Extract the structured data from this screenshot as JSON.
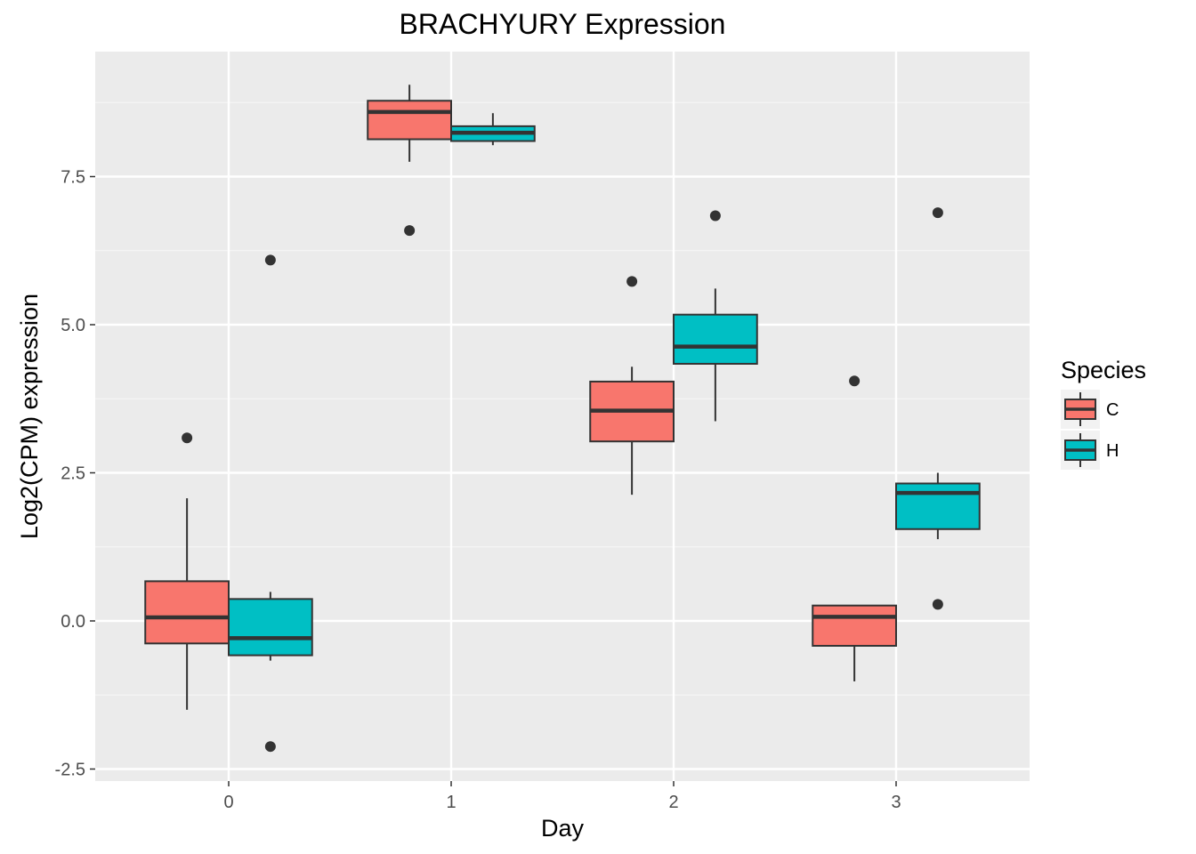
{
  "chart_data": {
    "type": "boxplot",
    "title": "BRACHYURY Expression",
    "xlabel": "Day",
    "ylabel": "Log2(CPM) expression",
    "categories": [
      "0",
      "1",
      "2",
      "3"
    ],
    "ylim": [
      -2.5,
      9.0
    ],
    "xlim": [
      -0.6,
      3.6
    ],
    "yticks": [
      -2.5,
      0.0,
      2.5,
      5.0,
      7.5
    ],
    "ytick_labels": [
      "-2.5",
      "0.0",
      "2.5",
      "5.0",
      "7.5"
    ],
    "grid": true,
    "legend": {
      "title": "Species",
      "placement": "right"
    },
    "series": [
      {
        "name": "C",
        "color": "#f8766d",
        "boxes": [
          {
            "day": "0",
            "q1": -0.38,
            "median": 0.06,
            "q3": 0.67,
            "whisker_low": -1.5,
            "whisker_high": 2.07,
            "outliers": [
              3.09
            ]
          },
          {
            "day": "1",
            "q1": 8.13,
            "median": 8.59,
            "q3": 8.78,
            "whisker_low": 7.75,
            "whisker_high": 9.05,
            "outliers": [
              6.59
            ]
          },
          {
            "day": "2",
            "q1": 3.03,
            "median": 3.55,
            "q3": 4.04,
            "whisker_low": 2.13,
            "whisker_high": 4.29,
            "outliers": [
              5.73
            ]
          },
          {
            "day": "3",
            "q1": -0.42,
            "median": 0.07,
            "q3": 0.26,
            "whisker_low": -1.02,
            "whisker_high": 0.26,
            "outliers": [
              4.05
            ]
          }
        ]
      },
      {
        "name": "H",
        "color": "#00bfc4",
        "boxes": [
          {
            "day": "0",
            "q1": -0.58,
            "median": -0.29,
            "q3": 0.37,
            "whisker_low": -0.67,
            "whisker_high": 0.49,
            "outliers": [
              6.09,
              -2.12
            ]
          },
          {
            "day": "1",
            "q1": 8.1,
            "median": 8.24,
            "q3": 8.35,
            "whisker_low": 8.03,
            "whisker_high": 8.57,
            "outliers": []
          },
          {
            "day": "2",
            "q1": 4.34,
            "median": 4.63,
            "q3": 5.17,
            "whisker_low": 3.37,
            "whisker_high": 5.61,
            "outliers": [
              6.84
            ]
          },
          {
            "day": "3",
            "q1": 1.55,
            "median": 2.16,
            "q3": 2.32,
            "whisker_low": 1.38,
            "whisker_high": 2.5,
            "outliers": [
              0.28,
              6.89
            ]
          }
        ]
      }
    ]
  }
}
